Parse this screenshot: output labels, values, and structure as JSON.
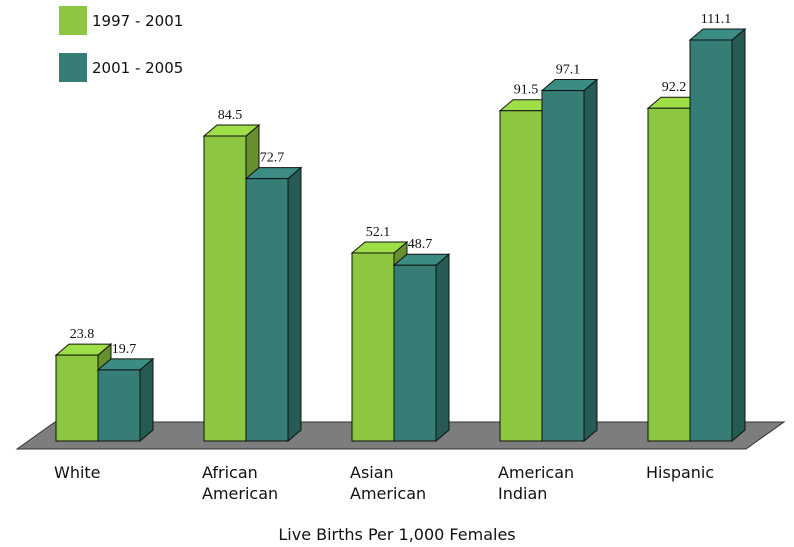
{
  "chart_data": {
    "type": "bar",
    "categories": [
      [
        "White"
      ],
      [
        "African",
        "American"
      ],
      [
        "Asian",
        "American"
      ],
      [
        "American",
        "Indian"
      ],
      [
        "Hispanic"
      ]
    ],
    "series": [
      {
        "name": "1997 - 2001",
        "color": "#8dc63f",
        "values": [
          23.8,
          84.5,
          52.1,
          91.5,
          92.2
        ]
      },
      {
        "name": "2001 - 2005",
        "color": "#357d75",
        "values": [
          19.7,
          72.7,
          48.7,
          97.1,
          111.1
        ]
      }
    ],
    "xlabel": "Live Births Per 1,000 Females",
    "ylabel": "",
    "ylim": [
      0,
      111.1
    ],
    "grid": false,
    "legend_position": "top-left",
    "style": "3d-columns"
  }
}
